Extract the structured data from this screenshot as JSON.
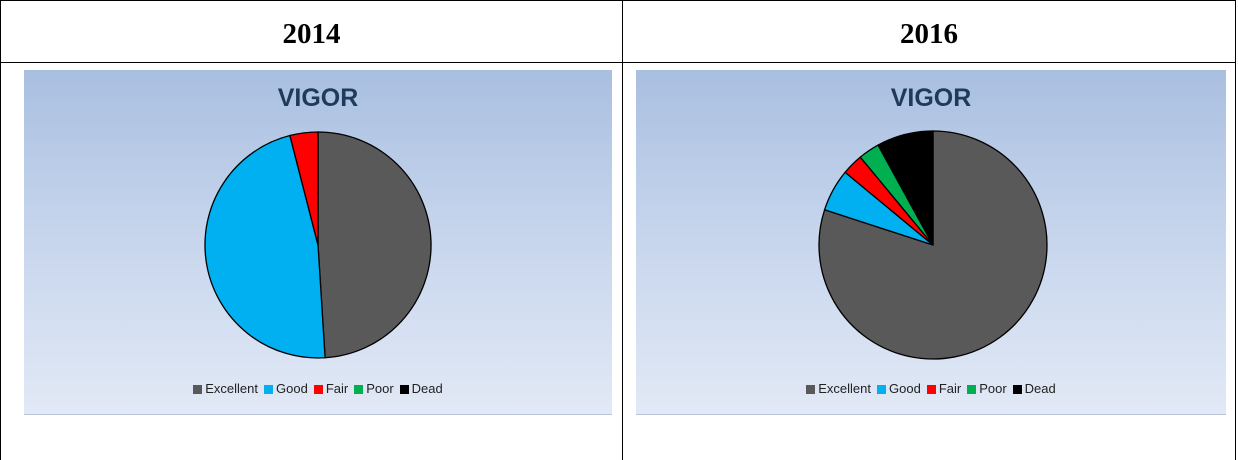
{
  "table": {
    "headers": [
      "2014",
      "2016"
    ]
  },
  "colors": {
    "Excellent": "#595959",
    "Good": "#00b0f0",
    "Fair": "#ff0000",
    "Poor": "#00b050",
    "Dead": "#000000"
  },
  "chart_data": [
    {
      "type": "pie",
      "title": "VIGOR",
      "categories": [
        "Excellent",
        "Good",
        "Fair",
        "Poor",
        "Dead"
      ],
      "values": [
        49,
        47,
        4,
        0,
        0
      ],
      "legend": "bottom"
    },
    {
      "type": "pie",
      "title": "VIGOR",
      "categories": [
        "Excellent",
        "Good",
        "Fair",
        "Poor",
        "Dead"
      ],
      "values": [
        80,
        6,
        3,
        3,
        8
      ],
      "legend": "bottom"
    }
  ]
}
